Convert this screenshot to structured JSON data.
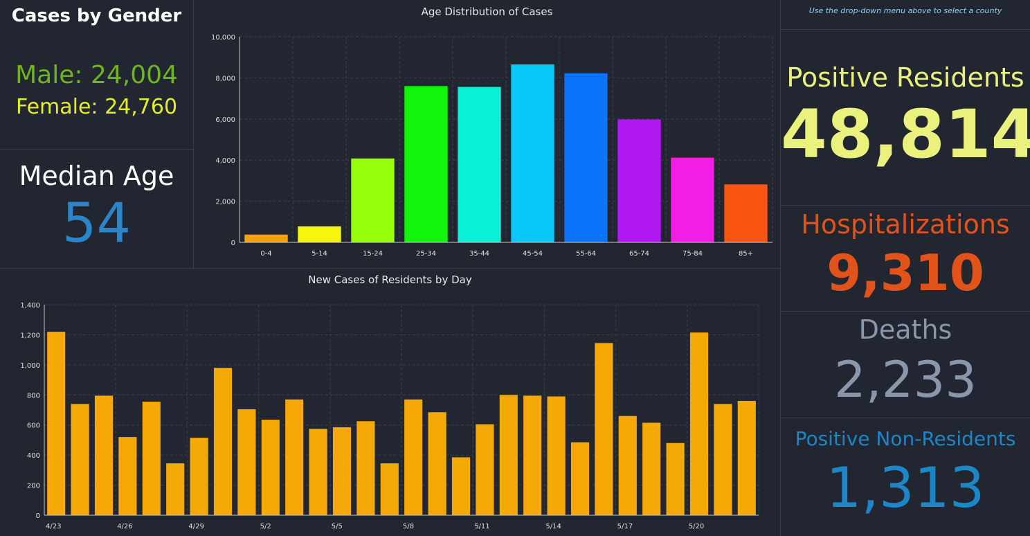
{
  "gender": {
    "title": "Cases by Gender",
    "male": "Male: 24,004",
    "female": "Female: 24,760",
    "male_color": "#6fb51f",
    "female_color": "#e5ee24"
  },
  "median_age": {
    "label": "Median Age",
    "value": "54",
    "value_color": "#2b86c9"
  },
  "right": {
    "instruction": "Use the drop-down menu above to select a county",
    "positive_residents_label": "Positive Residents",
    "positive_residents_value": "48,814",
    "hospitalizations_label": "Hospitalizations",
    "hospitalizations_value": "9,310",
    "deaths_label": "Deaths",
    "deaths_value": "2,233",
    "non_residents_label": "Positive Non-Residents",
    "non_residents_value": "1,313",
    "colors": {
      "positive": "#eaf27d",
      "hospitalizations": "#e2531a",
      "deaths": "#8a97ab",
      "non_residents": "#1c86c7"
    }
  },
  "chart_data": [
    {
      "type": "bar",
      "title": "Age Distribution of Cases",
      "categories": [
        "0-4",
        "5-14",
        "15-24",
        "25-34",
        "35-44",
        "45-54",
        "55-64",
        "65-74",
        "75-84",
        "85+"
      ],
      "values": [
        380,
        780,
        4080,
        7600,
        7560,
        8650,
        8220,
        5980,
        4120,
        2820
      ],
      "colors": [
        "#f5a30a",
        "#f6f60a",
        "#97ff0a",
        "#10f50a",
        "#0af0d8",
        "#0ac8fa",
        "#0a73fa",
        "#b218f2",
        "#f21ee6",
        "#f85610"
      ],
      "ylim": [
        0,
        10000
      ],
      "yticks": [
        "0",
        "2,000",
        "4,000",
        "6,000",
        "8,000",
        "10,000"
      ],
      "grid": true
    },
    {
      "type": "bar",
      "title": "New Cases of Residents by Day",
      "categories": [
        "4/23",
        "4/24",
        "4/25",
        "4/26",
        "4/27",
        "4/28",
        "4/29",
        "4/30",
        "5/1",
        "5/2",
        "5/3",
        "5/4",
        "5/5",
        "5/6",
        "5/7",
        "5/8",
        "5/9",
        "5/10",
        "5/11",
        "5/12",
        "5/13",
        "5/14",
        "5/15",
        "5/16",
        "5/17",
        "5/18",
        "5/19",
        "5/20",
        "5/21",
        "5/22"
      ],
      "xtick_labels": [
        "4/23",
        "4/26",
        "4/29",
        "5/2",
        "5/5",
        "5/8",
        "5/11",
        "5/14",
        "5/17",
        "5/20"
      ],
      "values": [
        1220,
        740,
        795,
        520,
        755,
        345,
        515,
        980,
        705,
        635,
        770,
        575,
        585,
        625,
        345,
        770,
        685,
        385,
        605,
        800,
        795,
        790,
        485,
        1145,
        660,
        615,
        480,
        1215,
        740,
        760
      ],
      "color": "#f5a907",
      "ylim": [
        0,
        1400
      ],
      "yticks": [
        "0",
        "200",
        "400",
        "600",
        "800",
        "1,000",
        "1,200",
        "1,400"
      ],
      "grid": true
    }
  ]
}
